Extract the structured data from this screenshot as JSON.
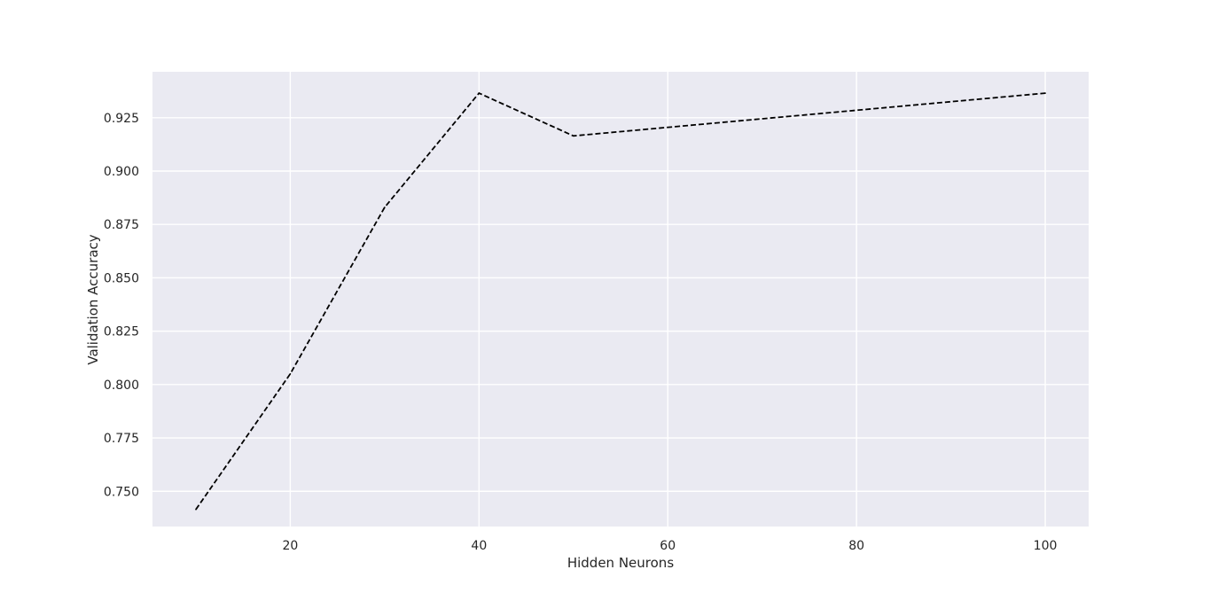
{
  "chart_data": {
    "type": "line",
    "title": "",
    "xlabel": "Hidden Neurons",
    "ylabel": "Validation Accuracy",
    "x": [
      10,
      20,
      30,
      40,
      50,
      100
    ],
    "series": [
      {
        "name": "Validation Accuracy",
        "values": [
          0.7415,
          0.805,
          0.883,
          0.9365,
          0.9165,
          0.9365
        ],
        "color": "#000000",
        "style": "dashed"
      }
    ],
    "xlim": [
      5.4,
      104.6
    ],
    "ylim": [
      0.7335,
      0.9465
    ],
    "xticks": [
      20,
      40,
      60,
      80,
      100
    ],
    "xtick_labels": [
      "20",
      "40",
      "60",
      "80",
      "100"
    ],
    "yticks": [
      0.75,
      0.775,
      0.8,
      0.825,
      0.85,
      0.875,
      0.9,
      0.925
    ],
    "ytick_labels": [
      "0.750",
      "0.775",
      "0.800",
      "0.825",
      "0.850",
      "0.875",
      "0.900",
      "0.925"
    ],
    "grid": true,
    "background_color": "#EAEAF2",
    "grid_color": "#FFFFFF"
  }
}
